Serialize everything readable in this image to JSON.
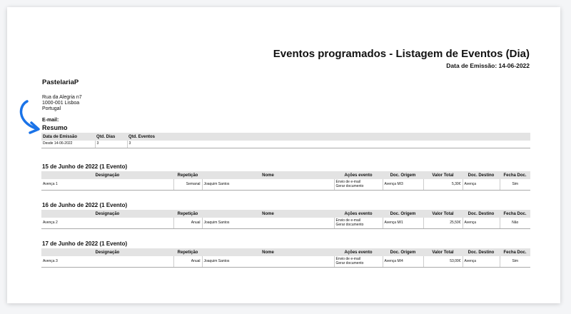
{
  "header": {
    "title": "Eventos programados - Listagem de Eventos (Dia)",
    "emission": "Data de Emissão: 14-06-2022"
  },
  "company": {
    "name": "PastelariaP",
    "address": [
      "Rua da Alegria n7",
      "1000-001 Lisboa",
      "Portugal"
    ],
    "email_label": "E-mail:"
  },
  "summary": {
    "title": "Resumo",
    "headers": [
      "Data de Emissão",
      "Qtd. Dias",
      "Qtd. Eventos"
    ],
    "row": [
      "Desde 14-06-2022",
      "3",
      "3"
    ]
  },
  "columns": [
    "Designação",
    "Repetição",
    "Nome",
    "Ações evento",
    "Doc. Origem",
    "Valor Total",
    "Doc. Destino",
    "Fecha Doc."
  ],
  "days": [
    {
      "heading": "15 de Junho de 2022 (1 Evento)",
      "row": {
        "designacao": "Avença 1",
        "repeticao": "Semanal",
        "nome": "Joaquim Santos",
        "acoes": [
          "Envio de e-mail",
          "Gerar documento"
        ],
        "origem": "Avença M/3",
        "valor": "5,30€",
        "destino": "Avença",
        "fecha": "Sim"
      }
    },
    {
      "heading": "16 de Junho de 2022 (1 Evento)",
      "row": {
        "designacao": "Avença 2",
        "repeticao": "Anual",
        "nome": "Joaquim Santos",
        "acoes": [
          "Envio de e-mail",
          "Gerar documento"
        ],
        "origem": "Avença M/1",
        "valor": "25,50€",
        "destino": "Avença",
        "fecha": "Não"
      }
    },
    {
      "heading": "17 de Junho de 2022 (1 Evento)",
      "row": {
        "designacao": "Avença 3",
        "repeticao": "Anual",
        "nome": "Joaquim Santos",
        "acoes": [
          "Envio de e-mail",
          "Gerar documento"
        ],
        "origem": "Avença M/4",
        "valor": "53,00€",
        "destino": "Avença",
        "fecha": "Sim"
      }
    }
  ],
  "accent_color": "#1a73e8",
  "icons": {
    "annotation": "curved-arrow-icon"
  }
}
